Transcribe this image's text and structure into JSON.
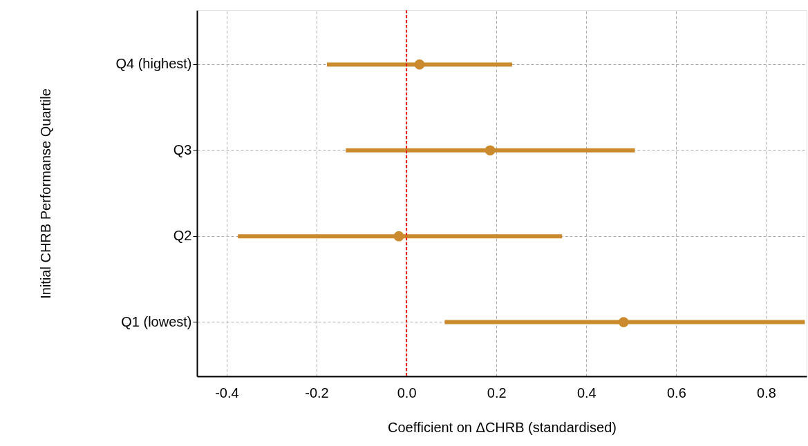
{
  "chart_data": {
    "type": "scatter",
    "orientation": "horizontal",
    "xlabel": "Coefficient on ΔCHRB (standardised)",
    "ylabel": "Initial CHRB Performanse Quartile",
    "categories": [
      "Q4 (highest)",
      "Q3",
      "Q2",
      "Q1 (lowest)"
    ],
    "series": [
      {
        "color": "#cc8a2e",
        "values": [
          0.029,
          0.186,
          -0.017,
          0.483
        ],
        "errors": [
          [
            -0.177,
            0.235
          ],
          [
            -0.135,
            0.508
          ],
          [
            -0.375,
            0.346
          ],
          [
            0.085,
            0.886
          ]
        ]
      }
    ],
    "xlim": [
      -0.466,
      0.89
    ],
    "xticks": [
      {
        "value": -0.4,
        "label": "-0.4"
      },
      {
        "value": -0.2,
        "label": "-0.2"
      },
      {
        "value": 0,
        "label": "0.0"
      },
      {
        "value": 0.2,
        "label": "0.2"
      },
      {
        "value": 0.4,
        "label": "0.4"
      },
      {
        "value": 0.6,
        "label": "0.6"
      },
      {
        "value": 0.8,
        "label": "0.8"
      }
    ],
    "ref_lines": [
      {
        "axis": "x",
        "value": 0,
        "color": "#ee1111",
        "line_style": "dashed"
      }
    ],
    "grid": true,
    "marker": "circle"
  }
}
